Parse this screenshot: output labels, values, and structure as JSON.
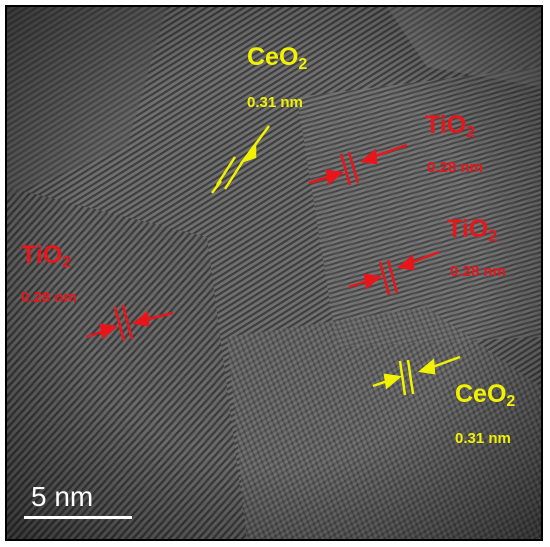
{
  "colors": {
    "ceo2": "#f2f200",
    "tio2": "#e8151b",
    "scale_bar": "#ffffff"
  },
  "annotations": [
    {
      "id": "ceo2-top",
      "phase": "CeO",
      "subscript": "2",
      "spacing": "0.31 nm"
    },
    {
      "id": "tio2-top",
      "phase": "TiO",
      "subscript": "2",
      "spacing": "0.28 nm"
    },
    {
      "id": "tio2-middle",
      "phase": "TiO",
      "subscript": "2",
      "spacing": "0.28 nm"
    },
    {
      "id": "tio2-left",
      "phase": "TiO",
      "subscript": "2",
      "spacing": "0.28 nm"
    },
    {
      "id": "ceo2-bottom",
      "phase": "CeO",
      "subscript": "2",
      "spacing": "0.31 nm"
    }
  ],
  "scale_bar": {
    "label": "5 nm"
  }
}
